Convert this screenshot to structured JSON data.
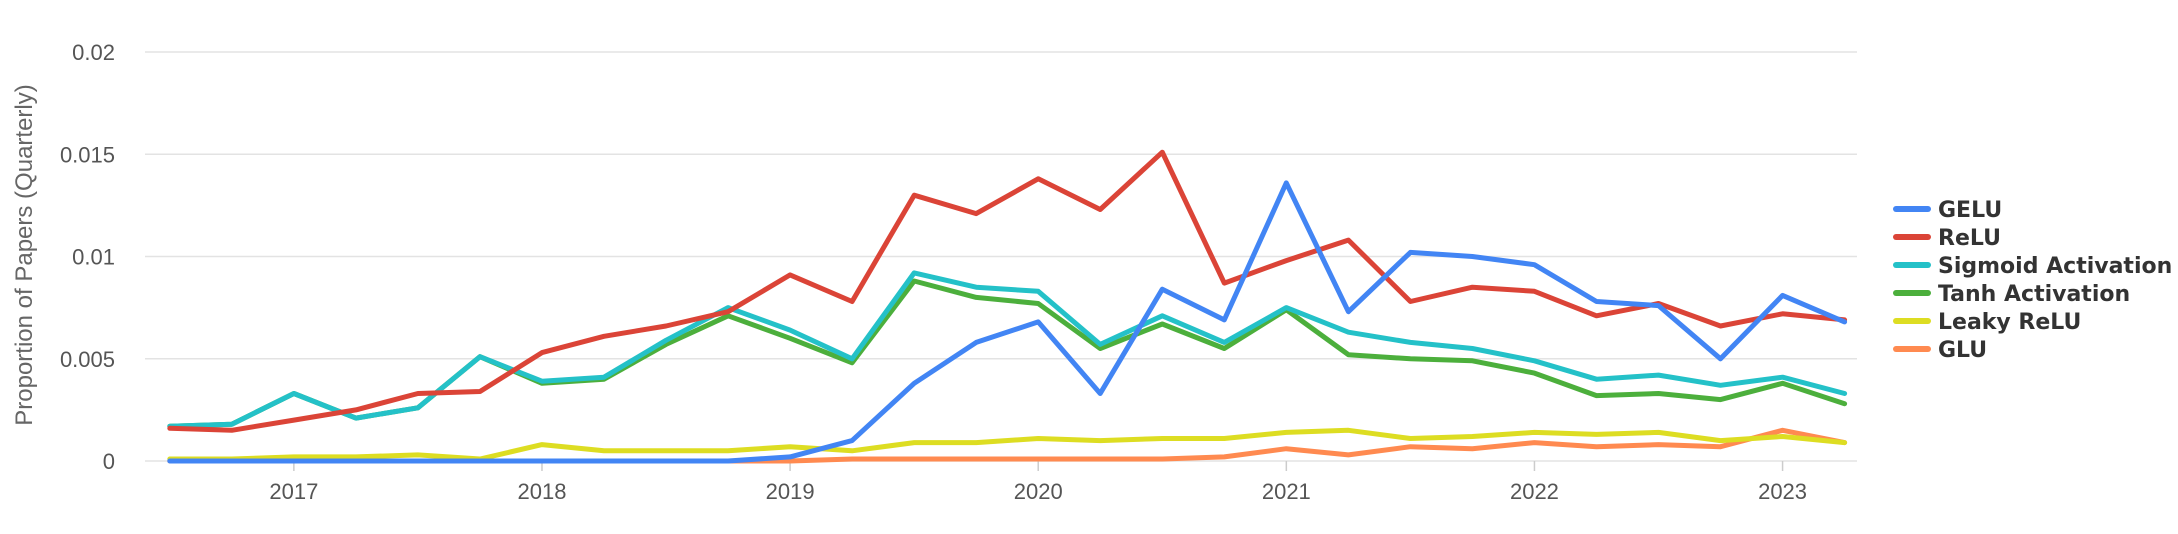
{
  "chart_data": {
    "type": "line",
    "title": "",
    "ylabel": "Proportion of Papers (Quarterly)",
    "xlabel": "",
    "ylim": [
      0,
      0.02
    ],
    "yticks": [
      0,
      0.005,
      0.01,
      0.015,
      0.02
    ],
    "ytick_labels": [
      "0",
      "0.005",
      "0.01",
      "0.015",
      "0.02"
    ],
    "xlim": [
      2016.4,
      2023.3
    ],
    "xticks": [
      2017,
      2018,
      2019,
      2020,
      2021,
      2022,
      2023
    ],
    "xtick_labels": [
      "2017",
      "2018",
      "2019",
      "2020",
      "2021",
      "2022",
      "2023"
    ],
    "grid": true,
    "legend_position": "right",
    "x": [
      2016.5,
      2016.75,
      2017.0,
      2017.25,
      2017.5,
      2017.75,
      2018.0,
      2018.25,
      2018.5,
      2018.75,
      2019.0,
      2019.25,
      2019.5,
      2019.75,
      2020.0,
      2020.25,
      2020.5,
      2020.75,
      2021.0,
      2021.25,
      2021.5,
      2021.75,
      2022.0,
      2022.25,
      2022.5,
      2022.75,
      2023.0,
      2023.25
    ],
    "series": [
      {
        "name": "GELU",
        "color": "#4285f4",
        "values": [
          0,
          0,
          0,
          0,
          0,
          0,
          0,
          0,
          0,
          0,
          0.0002,
          0.001,
          0.0038,
          0.0058,
          0.0068,
          0.0033,
          0.0084,
          0.0069,
          0.0136,
          0.0073,
          0.0102,
          0.01,
          0.0096,
          0.0078,
          0.0076,
          0.005,
          0.0081,
          0.0068
        ]
      },
      {
        "name": "ReLU",
        "color": "#db4437",
        "values": [
          0.0016,
          0.0015,
          0.002,
          0.0025,
          0.0033,
          0.0034,
          0.0053,
          0.0061,
          0.0066,
          0.0073,
          0.0091,
          0.0078,
          0.013,
          0.0121,
          0.0138,
          0.0123,
          0.0151,
          0.0087,
          0.0098,
          0.0108,
          0.0078,
          0.0085,
          0.0083,
          0.0071,
          0.0077,
          0.0066,
          0.0072,
          0.0069
        ]
      },
      {
        "name": "Sigmoid Activation",
        "color": "#24c1c8",
        "values": [
          0.0017,
          0.0018,
          0.0033,
          0.0021,
          0.0026,
          0.0051,
          0.0039,
          0.0041,
          0.0059,
          0.0075,
          0.0064,
          0.005,
          0.0092,
          0.0085,
          0.0083,
          0.0057,
          0.0071,
          0.0058,
          0.0075,
          0.0063,
          0.0058,
          0.0055,
          0.0049,
          0.004,
          0.0042,
          0.0037,
          0.0041,
          0.0033
        ]
      },
      {
        "name": "Tanh Activation",
        "color": "#4caf3c",
        "values": [
          0.0017,
          0.0018,
          0.0033,
          0.0021,
          0.0026,
          0.0051,
          0.0038,
          0.004,
          0.0057,
          0.0071,
          0.006,
          0.0048,
          0.0088,
          0.008,
          0.0077,
          0.0055,
          0.0067,
          0.0055,
          0.0074,
          0.0052,
          0.005,
          0.0049,
          0.0043,
          0.0032,
          0.0033,
          0.003,
          0.0038,
          0.0028
        ]
      },
      {
        "name": "Leaky ReLU",
        "color": "#dddd22",
        "values": [
          0.0001,
          0.0001,
          0.0002,
          0.0002,
          0.0003,
          0.0001,
          0.0008,
          0.0005,
          0.0005,
          0.0005,
          0.0007,
          0.0005,
          0.0009,
          0.0009,
          0.0011,
          0.001,
          0.0011,
          0.0011,
          0.0014,
          0.0015,
          0.0011,
          0.0012,
          0.0014,
          0.0013,
          0.0014,
          0.001,
          0.0012,
          0.0009
        ]
      },
      {
        "name": "GLU",
        "color": "#ff8a50",
        "values": [
          0,
          0,
          0,
          0,
          0,
          0,
          0,
          0,
          0,
          0,
          0,
          0.0001,
          0.0001,
          0.0001,
          0.0001,
          0.0001,
          0.0001,
          0.0002,
          0.0006,
          0.0003,
          0.0007,
          0.0006,
          0.0009,
          0.0007,
          0.0008,
          0.0007,
          0.0015,
          0.0009
        ]
      }
    ]
  }
}
